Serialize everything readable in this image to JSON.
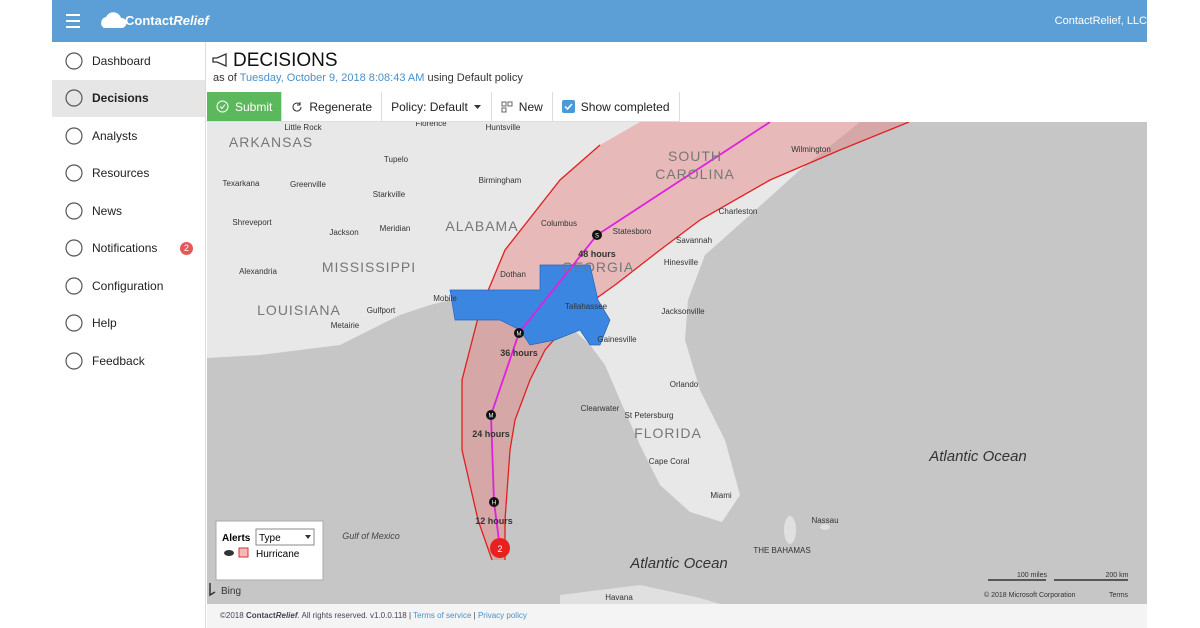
{
  "header": {
    "brand_a": "Contact",
    "brand_b": "Relief",
    "account": "ContactRelief, LLC"
  },
  "nav": [
    {
      "label": "Dashboard"
    },
    {
      "label": "Decisions"
    },
    {
      "label": "Analysts"
    },
    {
      "label": "Resources"
    },
    {
      "label": "News"
    },
    {
      "label": "Notifications",
      "badge": "2"
    },
    {
      "label": "Configuration"
    },
    {
      "label": "Help"
    },
    {
      "label": "Feedback"
    }
  ],
  "page": {
    "title": "DECISIONS",
    "asof": "as of",
    "date": "Tuesday, October 9, 2018 8:08:43 AM",
    "policy_text": "using Default policy"
  },
  "toolbar": {
    "submit": "Submit",
    "regenerate": "Regenerate",
    "policy": "Policy: Default",
    "new": "New",
    "show_completed": "Show completed"
  },
  "map": {
    "labels": [
      "ARKANSAS",
      "Little Rock",
      "Florence",
      "Huntsville",
      "Tupelo",
      "Greenville",
      "Texarkana",
      "Birmingham",
      "Starkville",
      "Shreveport",
      "Jackson",
      "Meridian",
      "ALABAMA",
      "MISSISSIPPI",
      "Alexandria",
      "Columbus",
      "Statesboro",
      "Savannah",
      "Charleston",
      "Wilmington",
      "SOUTH",
      "CAROLINA",
      "GEORGIA",
      "Hinesville",
      "Dothan",
      "LOUISIANA",
      "Mobile",
      "Gulfport",
      "Metairie",
      "Tallahassee",
      "Jacksonville",
      "Gainesville",
      "Orlando",
      "Clearwater",
      "St Petersburg",
      "FLORIDA",
      "Cape Coral",
      "Miami",
      "Nassau",
      "THE BAHAMAS",
      "Havana",
      "Gulf of Mexico",
      "Atlantic Ocean",
      "Atlantic Ocean"
    ],
    "track_labels": [
      "48 hours",
      "36 hours",
      "24 hours",
      "12 hours"
    ],
    "markers": [
      "S",
      "M",
      "M",
      "H"
    ],
    "storm": "2",
    "legend": {
      "title": "Alerts",
      "select": "Type",
      "item": "Hurricane"
    },
    "bing": "Bing",
    "scale": [
      "100 miles",
      "200 km"
    ],
    "copyright": "© 2018 Microsoft Corporation",
    "terms": "Terms"
  },
  "footer": {
    "copy": "©2018",
    "brand_a": "Contact",
    "brand_b": "Relief",
    "rights": ". All rights reserved. v1.0.0.118",
    "sep": "|",
    "tos": "Terms of service",
    "privacy": "Privacy policy"
  }
}
